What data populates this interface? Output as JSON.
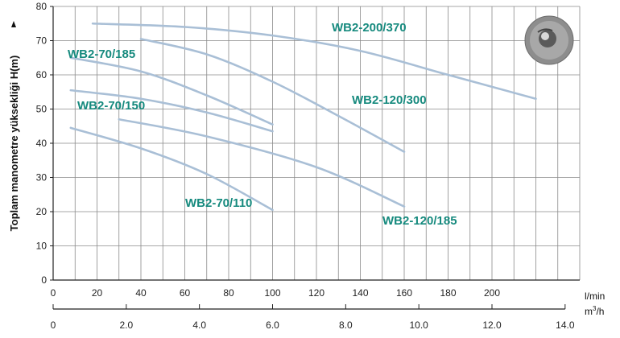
{
  "chart_data": {
    "type": "line",
    "ylabel": "Toplam manometre yüksekliği H(m)",
    "x_unit_primary": "l/min",
    "x_unit_secondary_base": "m",
    "x_unit_secondary_sup": "3",
    "x_unit_secondary_tail": "/h",
    "xlim": [
      0,
      240
    ],
    "ylim": [
      0,
      80
    ],
    "x_ticks": [
      "0",
      "20",
      "40",
      "60",
      "80",
      "100",
      "120",
      "140",
      "160",
      "180",
      "200"
    ],
    "y_ticks": [
      "0",
      "10",
      "20",
      "30",
      "40",
      "50",
      "60",
      "70",
      "80"
    ],
    "x2_ticks": [
      "0",
      "2.0",
      "4.0",
      "6.0",
      "8.0",
      "10.0",
      "12.0",
      "14.0"
    ],
    "grid": true,
    "line_color": "#a9bfd6",
    "label_color": "#168a7e",
    "series": [
      {
        "name": "WB2-200/370",
        "x": [
          18,
          60,
          100,
          140,
          180,
          220
        ],
        "y": [
          75,
          74,
          71.5,
          67,
          60,
          53
        ]
      },
      {
        "name": "WB2-120/300",
        "x": [
          40,
          70,
          100,
          130,
          160
        ],
        "y": [
          70.5,
          66,
          58,
          48,
          37.5
        ]
      },
      {
        "name": "WB2-70/185",
        "x": [
          8,
          40,
          70,
          100
        ],
        "y": [
          65,
          61,
          54,
          45.5
        ]
      },
      {
        "name": "WB2-70/150",
        "x": [
          8,
          40,
          70,
          100
        ],
        "y": [
          55.5,
          53,
          49,
          43.5
        ]
      },
      {
        "name": "WB2-120/185",
        "x": [
          30,
          70,
          120,
          160
        ],
        "y": [
          47,
          42,
          33,
          21.5
        ]
      },
      {
        "name": "WB2-70/110",
        "x": [
          8,
          40,
          70,
          100
        ],
        "y": [
          44.5,
          38.5,
          31,
          20.5
        ]
      }
    ]
  }
}
